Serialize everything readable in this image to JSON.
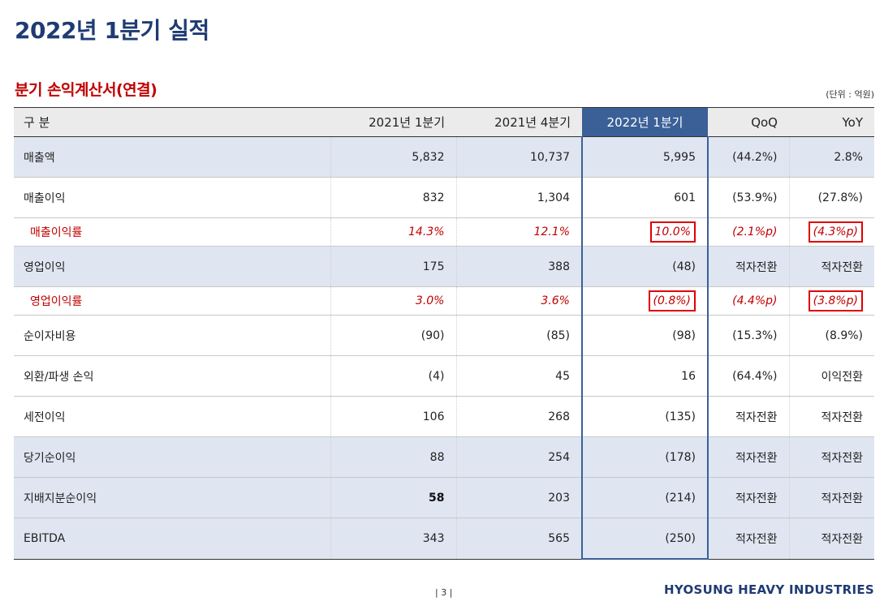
{
  "page": {
    "title": "2022년 1분기 실적",
    "section_title": "분기 손익계산서(연결)",
    "unit": "(단위 : 억원)"
  },
  "table": {
    "headers": [
      "구 분",
      "2021년 1분기",
      "2021년 4분기",
      "2022년 1분기",
      "QoQ",
      "YoY"
    ],
    "rows": [
      {
        "label": "매출액",
        "values": [
          "5,832",
          "10,737",
          "5,995",
          "(44.2%)",
          "2.8%"
        ]
      },
      {
        "label": "매출이익",
        "values": [
          "832",
          "1,304",
          "601",
          "(53.9%)",
          "(27.8%)"
        ]
      },
      {
        "label": "매출이익률",
        "values": [
          "14.3%",
          "12.1%",
          "10.0%",
          "(2.1%p)",
          "(4.3%p)"
        ]
      },
      {
        "label": "영업이익",
        "values": [
          "175",
          "388",
          "(48)",
          "적자전환",
          "적자전환"
        ]
      },
      {
        "label": "영업이익률",
        "values": [
          "3.0%",
          "3.6%",
          "(0.8%)",
          "(4.4%p)",
          "(3.8%p)"
        ]
      },
      {
        "label": "순이자비용",
        "values": [
          "(90)",
          "(85)",
          "(98)",
          "(15.3%)",
          "(8.9%)"
        ]
      },
      {
        "label": "외환/파생 손익",
        "values": [
          "(4)",
          "45",
          "16",
          "(64.4%)",
          "이익전환"
        ]
      },
      {
        "label": "세전이익",
        "values": [
          "106",
          "268",
          "(135)",
          "적자전환",
          "적자전환"
        ]
      },
      {
        "label": "당기순이익",
        "values": [
          "88",
          "254",
          "(178)",
          "적자전환",
          "적자전환"
        ]
      },
      {
        "label": "지배지분순이익",
        "values": [
          "58",
          "203",
          "(214)",
          "적자전환",
          "적자전환"
        ]
      },
      {
        "label": "EBITDA",
        "values": [
          "343",
          "565",
          "(250)",
          "적자전환",
          "적자전환"
        ]
      }
    ]
  },
  "footer": {
    "page_number": "| 3 |",
    "company": "HYOSUNG HEAVY INDUSTRIES"
  },
  "colors": {
    "title": "#1f3b73",
    "section_title": "#c00000",
    "highlight_column": "#3b6097",
    "row_shade": "#dfe6f1",
    "annotation_box": "#e00000"
  }
}
